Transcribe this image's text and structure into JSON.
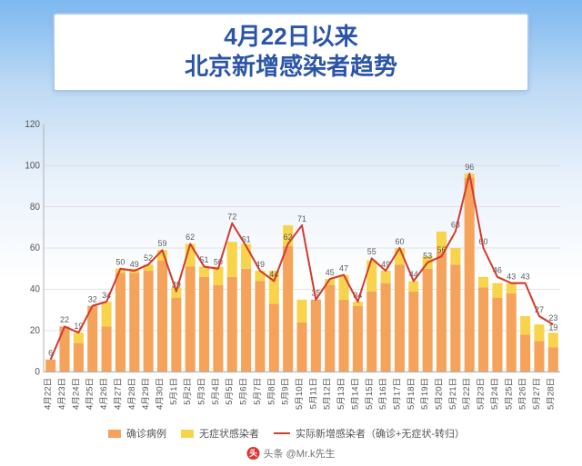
{
  "title": {
    "line1": "4月22日以来",
    "line2": "北京新增感染者趋势"
  },
  "chart": {
    "type": "stacked-bar+line",
    "ylim": [
      0,
      120
    ],
    "ytick_step": 20,
    "axis_color": "#b0b0b0",
    "grid_color": "#d8d8d8",
    "label_color": "#555555",
    "label_fontsize": 9,
    "axis_fontsize": 10,
    "value_label_fontsize": 9,
    "value_label_color": "#5a5a5a",
    "bar_width_ratio": 0.72,
    "colors": {
      "confirmed": "#f5a25a",
      "asymptomatic": "#f7d44c",
      "line": "#d43a2f",
      "line_width": 2,
      "background": "transparent"
    },
    "categories": [
      "4月22日",
      "4月23日",
      "4月24日",
      "4月25日",
      "4月26日",
      "4月27日",
      "4月28日",
      "4月29日",
      "4月30日",
      "5月1日",
      "5月2日",
      "5月3日",
      "5月4日",
      "5月5日",
      "5月6日",
      "5月7日",
      "5月8日",
      "5月9日",
      "5月10日",
      "5月11日",
      "5月12日",
      "5月13日",
      "5月14日",
      "5月15日",
      "5月16日",
      "5月17日",
      "5月18日",
      "5月19日",
      "5月20日",
      "5月21日",
      "5月22日",
      "5月23日",
      "5月24日",
      "5月25日",
      "5月26日",
      "5月27日",
      "5月28日"
    ],
    "confirmed": [
      6,
      22,
      14,
      32,
      22,
      48,
      48,
      49,
      54,
      36,
      51,
      46,
      42,
      46,
      50,
      44,
      33,
      61,
      24,
      35,
      42,
      35,
      32,
      39,
      43,
      52,
      39,
      50,
      58,
      52,
      94,
      41,
      36,
      38,
      18,
      15,
      12
    ],
    "asymptomatic": [
      0,
      0,
      5,
      0,
      12,
      2,
      2,
      3,
      5,
      5,
      11,
      5,
      9,
      17,
      12,
      5,
      16,
      10,
      11,
      0,
      3,
      12,
      2,
      15,
      6,
      8,
      5,
      6,
      10,
      8,
      2,
      5,
      7,
      5,
      9,
      8,
      7
    ],
    "line_totals": [
      6,
      22,
      19,
      32,
      34,
      50,
      49,
      52,
      59,
      39,
      62,
      51,
      50,
      72,
      61,
      49,
      44,
      62,
      71,
      35,
      45,
      47,
      34,
      55,
      49,
      60,
      44,
      53,
      56,
      68,
      96,
      60,
      46,
      43,
      43,
      27,
      23
    ],
    "top_value_labels": [
      6,
      22,
      19,
      32,
      34,
      50,
      49,
      52,
      59,
      39,
      62,
      51,
      50,
      72,
      61,
      49,
      44,
      62,
      71,
      35,
      45,
      47,
      34,
      55,
      49,
      60,
      44,
      53,
      56,
      68,
      96,
      60,
      46,
      43,
      43,
      27,
      "23\n19"
    ]
  },
  "legend": {
    "items": [
      {
        "swatch": "#f5a25a",
        "kind": "box",
        "label": "确诊病例"
      },
      {
        "swatch": "#f7d44c",
        "kind": "box",
        "label": "无症状感染者"
      },
      {
        "swatch": "#d43a2f",
        "kind": "line",
        "label": "实际新增感染者（确诊+无症状-转归）"
      }
    ]
  },
  "watermark": {
    "icon_text": "头",
    "text": "头条 @Mr.k先生"
  }
}
